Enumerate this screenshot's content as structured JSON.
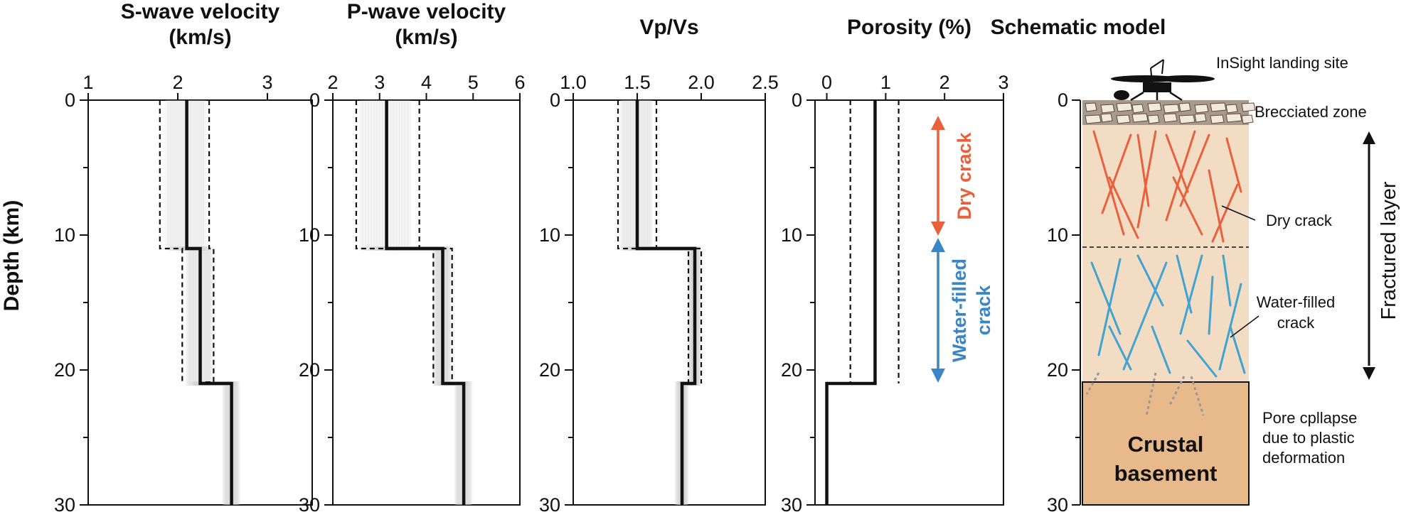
{
  "y_axis_label": "Depth (km)",
  "colors": {
    "dry": "#e8603c",
    "wet": "#3fa4d0",
    "arrow_wet": "#3a86c4",
    "fractured_fill": "#f2dcc4",
    "basement_fill": "#e8b98b",
    "breccia_fill": "#a89a8c"
  },
  "chart_data": [
    {
      "type": "line",
      "title": "S-wave velocity\n(km/s)",
      "xlim": [
        1,
        3.5
      ],
      "ylim": [
        30,
        0
      ],
      "xticks": [
        1,
        2,
        3
      ],
      "yticks": [
        0,
        10,
        20,
        30
      ],
      "series": [
        {
          "x": [
            2.1,
            2.1,
            2.25,
            2.25,
            2.6,
            2.6
          ],
          "y": [
            0,
            11,
            11,
            21,
            21,
            30
          ]
        },
        {
          "x": [
            1.8,
            1.8,
            2.05,
            2.05
          ],
          "y": [
            0,
            11,
            11,
            21
          ]
        },
        {
          "x": [
            2.35,
            2.35,
            2.4,
            2.4,
            2.25,
            2.25
          ],
          "y": [
            0,
            11,
            11,
            20.9,
            20.9,
            21
          ]
        }
      ]
    },
    {
      "type": "line",
      "title": "P-wave velocity\n(km/s)",
      "xlim": [
        2,
        6
      ],
      "ylim": [
        30,
        0
      ],
      "xticks": [
        2,
        3,
        4,
        5,
        6
      ],
      "yticks": [
        0,
        10,
        20,
        30
      ],
      "series": [
        {
          "x": [
            3.15,
            3.15,
            4.35,
            4.35,
            4.8,
            4.8
          ],
          "y": [
            0,
            11,
            11,
            21,
            21,
            30
          ]
        },
        {
          "x": [
            2.5,
            2.5,
            4.15,
            4.15
          ],
          "y": [
            0,
            11,
            11,
            21
          ]
        },
        {
          "x": [
            3.85,
            3.85,
            4.55,
            4.55
          ],
          "y": [
            0,
            11,
            11,
            21
          ]
        }
      ]
    },
    {
      "type": "line",
      "title": "Vp/Vs",
      "xlim": [
        1.0,
        2.5
      ],
      "ylim": [
        30,
        0
      ],
      "xticks": [
        "1.0",
        "1.5",
        "2.0",
        "2.5"
      ],
      "yticks": [
        0,
        10,
        20,
        30
      ],
      "series": [
        {
          "x": [
            1.5,
            1.5,
            1.95,
            1.95,
            1.85,
            1.85
          ],
          "y": [
            0,
            11,
            11,
            21,
            21,
            30
          ]
        },
        {
          "x": [
            1.35,
            1.35,
            1.9,
            1.9
          ],
          "y": [
            0,
            11,
            11,
            21
          ]
        },
        {
          "x": [
            1.65,
            1.65,
            2.0,
            2.0
          ],
          "y": [
            0,
            11,
            11,
            21
          ]
        }
      ]
    },
    {
      "type": "line",
      "title": "Porosity (%)",
      "xlim": [
        -0.2,
        3
      ],
      "ylim": [
        30,
        0
      ],
      "xticks": [
        0,
        1,
        2,
        3
      ],
      "yticks": [
        0,
        10,
        20,
        30
      ],
      "series": [
        {
          "x": [
            0.82,
            0.82,
            0.0,
            0.0
          ],
          "y": [
            0,
            21,
            21,
            30
          ]
        },
        {
          "x": [
            0.4,
            0.4
          ],
          "y": [
            0,
            21
          ]
        },
        {
          "x": [
            1.22,
            1.22
          ],
          "y": [
            0,
            21
          ]
        }
      ]
    }
  ],
  "annotations": {
    "dry_crack": "Dry crack",
    "water_filled_crack_1": "Water-filled",
    "water_filled_crack_2": "crack"
  },
  "schematic": {
    "title": "Schematic model",
    "yticks": [
      0,
      10,
      20,
      30
    ],
    "landing_site": "InSight landing site",
    "brecciated_zone": "Brecciated zone",
    "dry_crack": "Dry crack",
    "water_filled_1": "Water-filled",
    "water_filled_2": "crack",
    "fractured_layer": "Fractured layer",
    "pore_1": "Pore cpllapse",
    "pore_2": "due to plastic",
    "pore_3": "deformation",
    "basement_1": "Crustal",
    "basement_2": "basement"
  }
}
